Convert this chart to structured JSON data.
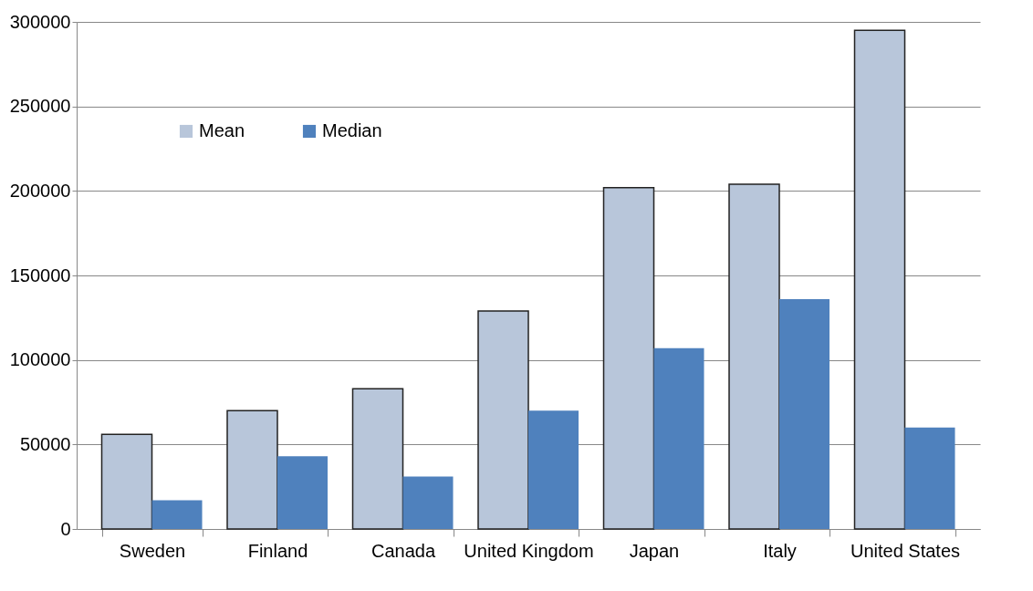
{
  "chart_data": {
    "type": "bar",
    "categories": [
      "Sweden",
      "Finland",
      "Canada",
      "United Kingdom",
      "Japan",
      "Italy",
      "United States"
    ],
    "series": [
      {
        "name": "Mean",
        "color": "#b8c6da",
        "values": [
          56000,
          70000,
          83000,
          129000,
          202000,
          204000,
          295000
        ]
      },
      {
        "name": "Median",
        "color": "#4f81bd",
        "values": [
          17000,
          43000,
          31000,
          70000,
          107000,
          136000,
          60000
        ]
      }
    ],
    "ylim": [
      0,
      300000
    ],
    "yticks": [
      0,
      50000,
      100000,
      150000,
      200000,
      250000,
      300000
    ],
    "grid": "y",
    "legend": "top left"
  }
}
